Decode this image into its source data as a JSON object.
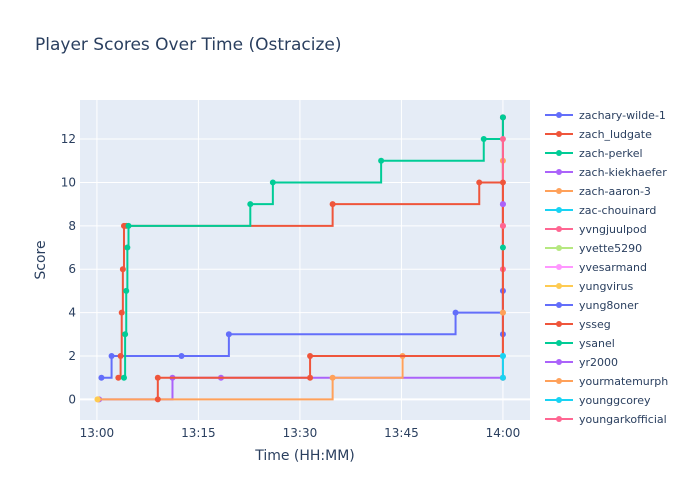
{
  "chart_data": {
    "type": "line",
    "line_shape": "step",
    "title": "Player Scores Over Time (Ostracize)",
    "xlabel": "Time (HH:MM)",
    "ylabel": "Score",
    "x_ticks": [
      "13:00",
      "13:15",
      "13:30",
      "13:45",
      "14:00"
    ],
    "y_ticks": [
      0,
      2,
      4,
      6,
      8,
      10,
      12
    ],
    "xlim": [
      "12:57:30",
      "14:04:00"
    ],
    "ylim": [
      -0.95,
      13.8
    ],
    "grid": true,
    "legend_position": "right",
    "series": [
      {
        "name": "zachary-wilde-1",
        "color": "#636efa",
        "points": [
          [
            "13:00:40",
            1
          ],
          [
            "13:02:10",
            2
          ],
          [
            "13:12:30",
            2
          ],
          [
            "13:19:30",
            3
          ],
          [
            "13:53:00",
            4
          ],
          [
            "14:00:00",
            13
          ]
        ]
      },
      {
        "name": "zach_ludgate",
        "color": "#ef553b",
        "points": [
          [
            "13:03:10",
            1
          ],
          [
            "13:03:30",
            2
          ],
          [
            "13:03:40",
            4
          ],
          [
            "13:03:50",
            6
          ],
          [
            "13:04:00",
            8
          ],
          [
            "13:04:20",
            8
          ],
          [
            "13:34:50",
            9
          ],
          [
            "13:56:30",
            10
          ],
          [
            "14:00:00",
            13
          ]
        ]
      },
      {
        "name": "zach-perkel",
        "color": "#00cc96",
        "points": [
          [
            "13:04:00",
            1
          ],
          [
            "13:04:10",
            3
          ],
          [
            "13:04:20",
            5
          ],
          [
            "13:04:30",
            7
          ],
          [
            "13:04:40",
            8
          ],
          [
            "13:22:40",
            9
          ],
          [
            "13:26:00",
            10
          ],
          [
            "13:42:00",
            11
          ],
          [
            "13:57:10",
            12
          ],
          [
            "14:00:00",
            13
          ]
        ]
      },
      {
        "name": "zach-kiekhaefer",
        "color": "#ab63fa",
        "points": [
          [
            "13:00:20",
            0
          ],
          [
            "13:11:10",
            1
          ],
          [
            "13:18:20",
            1
          ],
          [
            "14:00:00",
            1
          ],
          [
            "14:00:00",
            9
          ]
        ]
      },
      {
        "name": "zach-aaron-3",
        "color": "#ffa15a",
        "points": [
          [
            "13:00:10",
            0
          ],
          [
            "13:34:50",
            1
          ],
          [
            "13:45:10",
            2
          ],
          [
            "14:00:00",
            1
          ],
          [
            "14:00:00",
            11
          ]
        ]
      },
      {
        "name": "zac-chouinard",
        "color": "#19d3f3",
        "points": [
          [
            "14:00:00",
            1
          ],
          [
            "14:00:00",
            2
          ]
        ]
      },
      {
        "name": "yvngjuulpod",
        "color": "#ff6692",
        "points": [
          [
            "14:00:00",
            6
          ],
          [
            "14:00:00",
            8
          ],
          [
            "14:00:00",
            12
          ]
        ]
      },
      {
        "name": "yvette5290",
        "color": "#b6e880",
        "points": [
          [
            "14:00:00",
            4
          ]
        ]
      },
      {
        "name": "yvesarmand",
        "color": "#ff97ff",
        "points": [
          [
            "14:00:00",
            5
          ]
        ]
      },
      {
        "name": "yungvirus",
        "color": "#fecb52",
        "points": [
          [
            "13:00:05",
            0
          ]
        ]
      },
      {
        "name": "yung8oner",
        "color": "#636efa",
        "points": [
          [
            "14:00:00",
            3
          ],
          [
            "14:00:00",
            5
          ]
        ]
      },
      {
        "name": "ysseg",
        "color": "#ef553b",
        "points": [
          [
            "13:09:00",
            0
          ],
          [
            "13:09:00",
            1
          ],
          [
            "13:31:30",
            1
          ],
          [
            "13:31:30",
            2
          ],
          [
            "14:00:00",
            10
          ]
        ]
      },
      {
        "name": "ysanel",
        "color": "#00cc96",
        "points": [
          [
            "14:00:00",
            7
          ]
        ]
      },
      {
        "name": "yr2000",
        "color": "#ab63fa",
        "points": [
          [
            "14:00:00",
            9
          ]
        ]
      },
      {
        "name": "yourmatemurph",
        "color": "#ffa15a",
        "points": [
          [
            "14:00:00",
            4
          ]
        ]
      },
      {
        "name": "younggcorey",
        "color": "#19d3f3",
        "points": [
          [
            "14:00:00",
            2
          ]
        ]
      },
      {
        "name": "youngarkofficial",
        "color": "#ff6692",
        "points": [
          [
            "14:00:00",
            8
          ]
        ]
      }
    ]
  }
}
